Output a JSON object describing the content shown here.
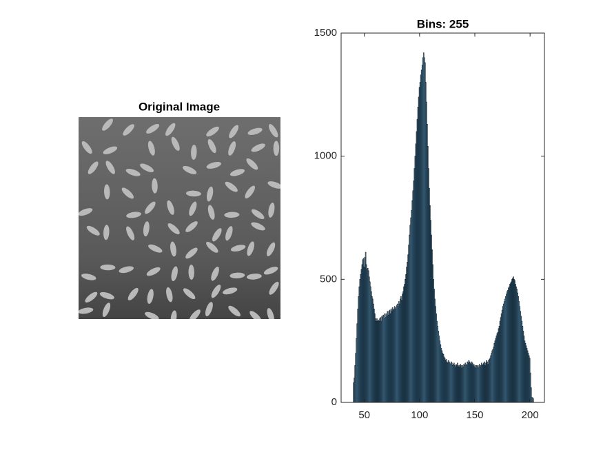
{
  "chart_data": [
    {
      "type": "image",
      "title": "Original Image"
    },
    {
      "type": "histogram",
      "title": "Bins: 255",
      "color": "#0072bd",
      "alpha": 0.6,
      "edgecolor": "#000000",
      "xlim": [
        29,
        213
      ],
      "ylim": [
        0,
        1500
      ],
      "xticks": [
        50,
        100,
        150,
        200
      ],
      "yticks": [
        0,
        500,
        1000,
        1500
      ],
      "bins": [
        40,
        40.64,
        41.28,
        41.92,
        42.56,
        43.2,
        43.84,
        44.48,
        45.12,
        45.76,
        46.4,
        47.04,
        47.68,
        48.32,
        48.96,
        49.6,
        50.24,
        50.88,
        51.52,
        52.16,
        52.8,
        53.44,
        54.08,
        54.72,
        55.36,
        56,
        56.64,
        57.28,
        57.92,
        58.56,
        59.2,
        59.84,
        60.48,
        61.12,
        61.76,
        62.4,
        63.04,
        63.68,
        64.32,
        64.96,
        65.6,
        66.24,
        66.88,
        67.52,
        68.16,
        68.8,
        69.44,
        70.08,
        70.72,
        71.36,
        72,
        72.64,
        73.28,
        73.92,
        74.56,
        75.2,
        75.84,
        76.48,
        77.12,
        77.76,
        78.4,
        79.04,
        79.68,
        80.32,
        80.96,
        81.6,
        82.24,
        82.88,
        83.52,
        84.16,
        84.8,
        85.44,
        86.08,
        86.72,
        87.36,
        88,
        88.64,
        89.28,
        89.92,
        90.56,
        91.2,
        91.84,
        92.48,
        93.12,
        93.76,
        94.4,
        95.04,
        95.68,
        96.32,
        96.96,
        97.6,
        98.24,
        98.88,
        99.52,
        100.16,
        100.8,
        101.44,
        102.08,
        102.72,
        103.36,
        104,
        104.64,
        105.28,
        105.92,
        106.56,
        107.2,
        107.84,
        108.48,
        109.12,
        109.76,
        110.4,
        111.04,
        111.68,
        112.32,
        112.96,
        113.6,
        114.24,
        114.88,
        115.52,
        116.16,
        116.8,
        117.44,
        118.08,
        118.72,
        119.36,
        120,
        120.64,
        121.28,
        121.92,
        122.56,
        123.2,
        123.84,
        124.48,
        125.12,
        125.76,
        126.4,
        127.04,
        127.68,
        128.32,
        128.96,
        129.6,
        130.24,
        130.88,
        131.52,
        132.16,
        132.8,
        133.44,
        134.08,
        134.72,
        135.36,
        136,
        136.64,
        137.28,
        137.92,
        138.56,
        139.2,
        139.84,
        140.48,
        141.12,
        141.76,
        142.4,
        143.04,
        143.68,
        144.32,
        144.96,
        145.6,
        146.24,
        146.88,
        147.52,
        148.16,
        148.8,
        149.44,
        150.08,
        150.72,
        151.36,
        152,
        152.64,
        153.28,
        153.92,
        154.56,
        155.2,
        155.84,
        156.48,
        157.12,
        157.76,
        158.4,
        159.04,
        159.68,
        160.32,
        160.96,
        161.6,
        162.24,
        162.88,
        163.52,
        164.16,
        164.8,
        165.44,
        166.08,
        166.72,
        167.36,
        168,
        168.64,
        169.28,
        169.92,
        170.56,
        171.2,
        171.84,
        172.48,
        173.12,
        173.76,
        174.4,
        175.04,
        175.68,
        176.32,
        176.96,
        177.6,
        178.24,
        178.88,
        179.52,
        180.16,
        180.8,
        181.44,
        182.08,
        182.72,
        183.36,
        184,
        184.64,
        185.28,
        185.92,
        186.56,
        187.2,
        187.84,
        188.48,
        189.12,
        189.76,
        190.4,
        191.04,
        191.68,
        192.32,
        192.96,
        193.6,
        194.24,
        194.88,
        195.52,
        196.16,
        196.8,
        197.44,
        198.08,
        198.72,
        199.36,
        200,
        200.64,
        201.28,
        201.92,
        202.56,
        203.2
      ],
      "values": [
        80,
        100,
        150,
        200,
        260,
        320,
        380,
        430,
        470,
        500,
        520,
        540,
        560,
        580,
        585,
        550,
        590,
        610,
        560,
        540,
        545,
        535,
        510,
        490,
        470,
        450,
        430,
        420,
        400,
        380,
        360,
        340,
        330,
        340,
        330,
        335,
        330,
        340,
        345,
        330,
        350,
        345,
        355,
        340,
        360,
        345,
        360,
        350,
        370,
        355,
        370,
        375,
        360,
        380,
        370,
        385,
        375,
        380,
        390,
        385,
        380,
        395,
        400,
        390,
        410,
        400,
        420,
        430,
        415,
        440,
        450,
        470,
        480,
        500,
        520,
        550,
        570,
        600,
        640,
        680,
        720,
        750,
        780,
        820,
        860,
        900,
        950,
        1000,
        1050,
        1100,
        1150,
        1200,
        1240,
        1280,
        1300,
        1330,
        1350,
        1370,
        1400,
        1420,
        1400,
        1380,
        1300,
        1220,
        1130,
        1040,
        950,
        870,
        800,
        740,
        680,
        620,
        560,
        500,
        460,
        420,
        390,
        360,
        330,
        310,
        290,
        270,
        250,
        235,
        220,
        210,
        200,
        195,
        185,
        180,
        170,
        175,
        165,
        160,
        170,
        165,
        160,
        155,
        165,
        160,
        150,
        155,
        160,
        150,
        145,
        155,
        150,
        160,
        145,
        150,
        145,
        155,
        150,
        140,
        150,
        145,
        155,
        150,
        160,
        155,
        150,
        165,
        160,
        170,
        165,
        160,
        155,
        165,
        160,
        150,
        155,
        145,
        150,
        140,
        150,
        145,
        150,
        140,
        155,
        145,
        150,
        160,
        150,
        155,
        160,
        165,
        150,
        160,
        170,
        165,
        155,
        170,
        175,
        180,
        190,
        200,
        210,
        215,
        225,
        240,
        250,
        260,
        270,
        280,
        285,
        300,
        310,
        330,
        345,
        360,
        375,
        390,
        400,
        410,
        420,
        430,
        440,
        450,
        455,
        465,
        470,
        480,
        485,
        490,
        500,
        505,
        510,
        500,
        495,
        480,
        470,
        460,
        445,
        430,
        410,
        390,
        370,
        350,
        330,
        310,
        290,
        270,
        250,
        240,
        230,
        220,
        210,
        200,
        190,
        180,
        120,
        60,
        20,
        20,
        15
      ]
    }
  ]
}
